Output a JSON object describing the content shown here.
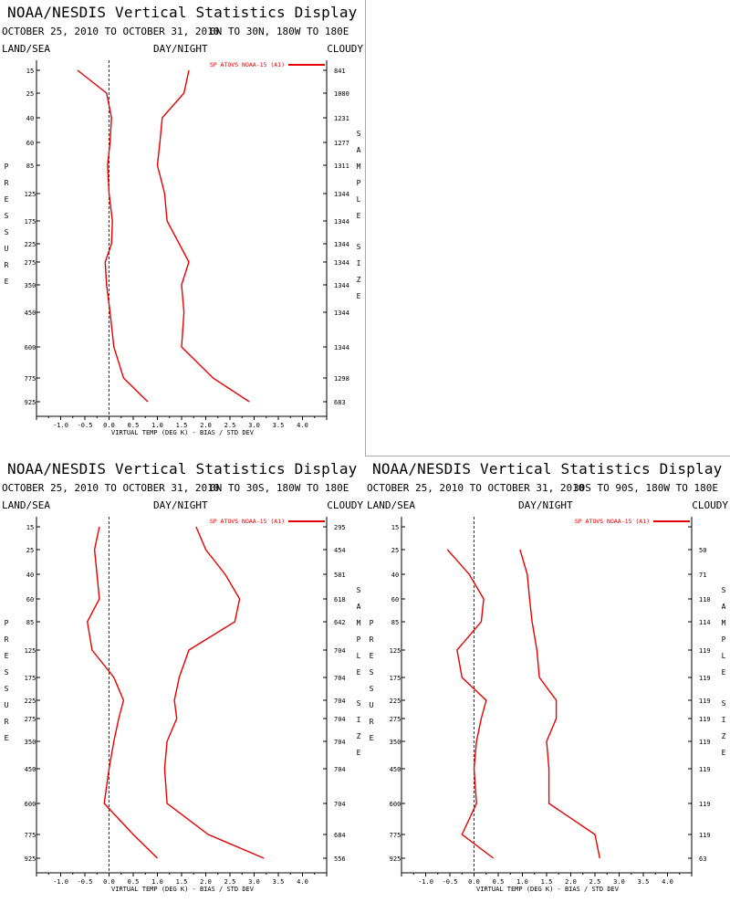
{
  "window_title": "NOAA/NESDIS Vertical Statistics Display",
  "common": {
    "title": "NOAA/NESDIS Vertical Statistics Display",
    "left_label": "LAND/SEA",
    "center_label": "DAY/NIGHT",
    "right_label": "CLOUDY",
    "pressure_letters": [
      "P",
      "R",
      "E",
      "S",
      "S",
      "U",
      "R",
      "E"
    ],
    "sample_letters": [
      "S",
      "A",
      "M",
      "P",
      "L",
      "E"
    ],
    "size_letters": [
      "S",
      "I",
      "Z",
      "E"
    ],
    "xlabel": "VIRTUAL TEMP (DEG K) - BIAS / STD DEV",
    "legend_label": "SP ATOVS NOAA-15 (A1)",
    "line_color": "#e60000"
  },
  "panels": [
    {
      "date_line": "OCTOBER 25, 2010 TO OCTOBER 31, 2010",
      "region": "0N TO 30N, 180W TO 180E"
    },
    {
      "date_line": "OCTOBER 25, 2010 TO OCTOBER 31, 2010",
      "region": "0N TO 30S, 180W TO 180E"
    },
    {
      "date_line": "OCTOBER 25, 2010 TO OCTOBER 31, 2010",
      "region": "30S TO 90S, 180W TO 180E"
    }
  ],
  "chart_data": [
    {
      "type": "line",
      "pressure_levels": [
        "15",
        "25",
        "40",
        "60",
        "85",
        "125",
        "175",
        "225",
        "275",
        "350",
        "450",
        "600",
        "775",
        "925"
      ],
      "xticks": [
        "-1.0",
        "-0.5",
        "0.0",
        "0.5",
        "1.0",
        "1.5",
        "2.0",
        "2.5",
        "3.0",
        "3.5",
        "4.0"
      ],
      "xlim": [
        -1.5,
        4.5
      ],
      "xlabel": "VIRTUAL TEMP (DEG K) - BIAS / STD DEV",
      "sample_size": [
        "841",
        "1080",
        "1231",
        "1277",
        "1311",
        "1344",
        "1344",
        "1344",
        "1344",
        "1344",
        "1344",
        "1344",
        "1298",
        "683"
      ],
      "series": [
        {
          "name": "SP ATOVS NOAA-15 (A1)",
          "role": "bias",
          "values": [
            -0.65,
            -0.05,
            0.05,
            0.02,
            -0.03,
            0.0,
            0.07,
            0.05,
            -0.08,
            -0.05,
            0.02,
            0.1,
            0.3,
            0.8
          ]
        },
        {
          "role": "std_dev",
          "values": [
            1.65,
            1.55,
            1.1,
            1.05,
            1.0,
            1.15,
            1.2,
            1.45,
            1.65,
            1.5,
            1.55,
            1.5,
            2.15,
            2.9
          ]
        }
      ]
    },
    {
      "type": "line",
      "pressure_levels": [
        "15",
        "25",
        "40",
        "60",
        "85",
        "125",
        "175",
        "225",
        "275",
        "350",
        "450",
        "600",
        "775",
        "925"
      ],
      "xticks": [
        "-1.0",
        "-0.5",
        "0.0",
        "0.5",
        "1.0",
        "1.5",
        "2.0",
        "2.5",
        "3.0",
        "3.5",
        "4.0"
      ],
      "xlim": [
        -1.5,
        4.5
      ],
      "xlabel": "VIRTUAL TEMP (DEG K) - BIAS / STD DEV",
      "sample_size": [
        "295",
        "454",
        "581",
        "618",
        "642",
        "704",
        "704",
        "704",
        "704",
        "704",
        "704",
        "704",
        "684",
        "556"
      ],
      "series": [
        {
          "name": "SP ATOVS NOAA-15 (A1)",
          "role": "bias",
          "values": [
            -0.2,
            -0.3,
            -0.25,
            -0.2,
            -0.45,
            -0.35,
            0.1,
            0.3,
            0.2,
            0.1,
            0.0,
            -0.1,
            0.5,
            1.0
          ]
        },
        {
          "role": "std_dev",
          "values": [
            1.8,
            2.0,
            2.4,
            2.7,
            2.6,
            1.65,
            1.45,
            1.35,
            1.4,
            1.2,
            1.15,
            1.2,
            2.05,
            3.2
          ]
        }
      ]
    },
    {
      "type": "line",
      "pressure_levels": [
        "15",
        "25",
        "40",
        "60",
        "85",
        "125",
        "175",
        "225",
        "275",
        "350",
        "450",
        "600",
        "775",
        "925"
      ],
      "xticks": [
        "-1.0",
        "-0.5",
        "0.0",
        "0.5",
        "1.0",
        "1.5",
        "2.0",
        "2.5",
        "3.0",
        "3.5",
        "4.0"
      ],
      "xlim": [
        -1.5,
        4.5
      ],
      "xlabel": "VIRTUAL TEMP (DEG K) - BIAS / STD DEV",
      "sample_size": [
        "",
        "50",
        "71",
        "110",
        "114",
        "119",
        "119",
        "119",
        "119",
        "119",
        "119",
        "119",
        "119",
        "63"
      ],
      "series": [
        {
          "name": "SP ATOVS NOAA-15 (A1)",
          "role": "bias",
          "values": [
            null,
            -0.55,
            -0.1,
            0.2,
            0.15,
            -0.35,
            -0.25,
            0.25,
            0.15,
            0.05,
            0.0,
            0.05,
            -0.25,
            0.4
          ]
        },
        {
          "role": "std_dev",
          "values": [
            null,
            0.95,
            1.1,
            1.15,
            1.2,
            1.3,
            1.35,
            1.7,
            1.7,
            1.5,
            1.55,
            1.55,
            2.5,
            2.6
          ]
        }
      ]
    }
  ]
}
